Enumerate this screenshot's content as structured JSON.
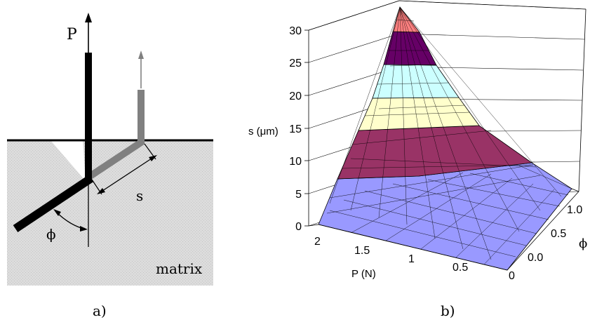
{
  "panel_a": {
    "force_label": "P",
    "displacement_label": "s",
    "angle_label": "ϕ",
    "region_label": "matrix",
    "caption": "a)"
  },
  "panel_b": {
    "caption": "b)",
    "z_axis_label": "s (μm)",
    "x_axis_label": "P (N)",
    "y_axis_label": "ϕ",
    "z_ticks": [
      "0",
      "5",
      "10",
      "15",
      "20",
      "25",
      "30"
    ],
    "p_ticks": [
      "2",
      "1.5",
      "1",
      "0.5",
      "0"
    ],
    "phi_ticks": [
      "0.0",
      "0.5",
      "1.0"
    ],
    "band_colors": [
      "#9999ff",
      "#993366",
      "#ffffcc",
      "#ccffff",
      "#660066",
      "#ff8080"
    ]
  },
  "chart_data": {
    "type": "surface",
    "zlabel": "s (μm)",
    "xlabel": "P (N)",
    "ylabel": "ϕ",
    "zlim": [
      0,
      30
    ],
    "xlim": [
      0,
      2
    ],
    "ylim": [
      0,
      1
    ],
    "band_edges": [
      0,
      5,
      10,
      15,
      20,
      25,
      30
    ],
    "corners": [
      {
        "P": 0,
        "phi": 0,
        "s": 0
      },
      {
        "P": 2,
        "phi": 0,
        "s": 0.5
      },
      {
        "P": 0,
        "phi": 1.2,
        "s": 1
      },
      {
        "P": 2,
        "phi": 1.2,
        "s": 30
      }
    ]
  }
}
